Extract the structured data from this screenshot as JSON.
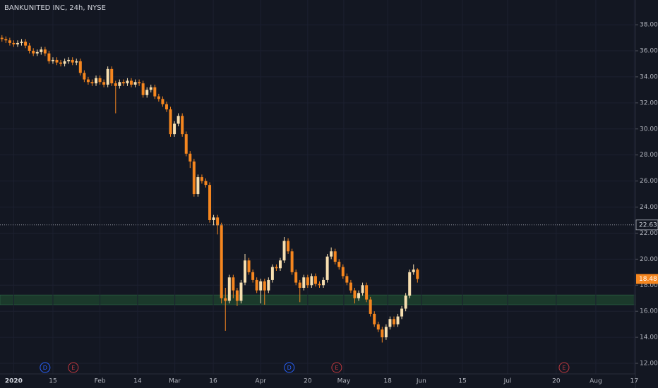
{
  "chart_data": {
    "type": "candlestick",
    "title": "BANKUNITED INC, 24h, NYSE",
    "up_color": "#f7dfb0",
    "down_color": "#f5861f",
    "grid": true,
    "xlim": [
      -0.5,
      161.6
    ],
    "ylim": [
      11.19,
      39.9
    ],
    "xticks": [
      {
        "value": 3,
        "label": "2020"
      },
      {
        "value": 13,
        "label": "15"
      },
      {
        "value": 25,
        "label": "Feb"
      },
      {
        "value": 34.6,
        "label": "14"
      },
      {
        "value": 44.1,
        "label": "Mar"
      },
      {
        "value": 53.9,
        "label": "16"
      },
      {
        "value": 66,
        "label": "Apr"
      },
      {
        "value": 78,
        "label": "20"
      },
      {
        "value": 87.2,
        "label": "May"
      },
      {
        "value": 98.4,
        "label": "18"
      },
      {
        "value": 107,
        "label": "Jun"
      },
      {
        "value": 117.5,
        "label": "15"
      },
      {
        "value": 129,
        "label": "Jul"
      },
      {
        "value": 141.4,
        "label": "20"
      },
      {
        "value": 151.5,
        "label": "Aug"
      },
      {
        "value": 161.3,
        "label": "17"
      }
    ],
    "yticks": [
      {
        "value": 12,
        "label": "12.00"
      },
      {
        "value": 14,
        "label": "14.00"
      },
      {
        "value": 16,
        "label": "16.00"
      },
      {
        "value": 18,
        "label": "18.00"
      },
      {
        "value": 20,
        "label": "20.00"
      },
      {
        "value": 22,
        "label": "22.00"
      },
      {
        "value": 24,
        "label": "24.00"
      },
      {
        "value": 26,
        "label": "26.00"
      },
      {
        "value": 28,
        "label": "28.00"
      },
      {
        "value": 30,
        "label": "30.00"
      },
      {
        "value": 32,
        "label": "32.00"
      },
      {
        "value": 34,
        "label": "34.00"
      },
      {
        "value": 36,
        "label": "36.00"
      },
      {
        "value": 38,
        "label": "38.00"
      }
    ],
    "open": [
      37.0,
      36.9,
      36.8,
      36.6,
      36.5,
      36.6,
      36.7,
      36.4,
      36.0,
      35.8,
      35.9,
      36.1,
      35.8,
      35.2,
      35.3,
      35.1,
      35.0,
      35.2,
      35.3,
      35.1,
      35.2,
      34.3,
      33.8,
      33.6,
      33.5,
      33.9,
      33.6,
      33.4,
      34.6,
      33.5,
      33.3,
      33.6,
      33.5,
      33.7,
      33.4,
      33.6,
      33.5,
      32.6,
      33.0,
      33.2,
      32.5,
      32.3,
      31.9,
      31.5,
      29.6,
      30.4,
      31.0,
      29.6,
      28.1,
      27.5,
      25.0,
      26.3,
      26.0,
      25.7,
      23.0,
      23.2,
      22.6,
      17.0,
      16.8,
      18.6,
      17.6,
      16.8,
      18.2,
      19.9,
      19.0,
      18.4,
      17.6,
      18.3,
      17.6,
      18.4,
      19.4,
      19.3,
      19.9,
      21.4,
      20.6,
      19.0,
      18.2,
      17.8,
      18.6,
      18.0,
      18.7,
      18.1,
      18.0,
      18.4,
      20.2,
      20.6,
      19.8,
      19.4,
      18.7,
      18.2,
      17.6,
      17.0,
      17.4,
      18.0,
      16.9,
      15.8,
      15.0,
      14.6,
      14.0,
      14.8,
      15.4,
      15.0,
      15.6,
      16.2,
      17.2,
      19.0,
      19.2
    ],
    "high": [
      37.2,
      37.1,
      37.0,
      36.8,
      36.8,
      36.9,
      36.9,
      36.6,
      36.2,
      36.1,
      36.3,
      36.3,
      36.0,
      35.5,
      35.5,
      35.3,
      35.4,
      35.5,
      35.5,
      35.4,
      35.4,
      34.5,
      34.0,
      33.8,
      34.1,
      34.1,
      33.8,
      34.8,
      34.8,
      33.7,
      33.8,
      33.8,
      33.9,
      33.9,
      33.8,
      33.8,
      33.7,
      33.2,
      33.4,
      33.4,
      32.7,
      32.5,
      32.1,
      31.7,
      30.6,
      31.2,
      31.2,
      29.8,
      28.3,
      27.7,
      26.5,
      26.5,
      26.2,
      25.9,
      23.4,
      23.4,
      22.8,
      17.8,
      18.8,
      18.8,
      17.8,
      18.4,
      20.4,
      20.1,
      19.2,
      18.6,
      18.5,
      18.5,
      18.6,
      19.6,
      19.6,
      20.1,
      21.7,
      21.6,
      20.8,
      19.2,
      18.4,
      18.8,
      18.8,
      18.9,
      18.9,
      18.3,
      18.6,
      20.4,
      20.9,
      20.8,
      20.0,
      19.6,
      18.9,
      18.4,
      17.8,
      17.6,
      18.2,
      18.2,
      17.1,
      16.0,
      15.2,
      14.8,
      15.0,
      15.6,
      15.6,
      15.8,
      16.4,
      17.4,
      19.2,
      19.6,
      19.3
    ],
    "low": [
      36.7,
      36.6,
      36.4,
      36.3,
      36.3,
      36.4,
      36.2,
      35.8,
      35.6,
      35.6,
      35.7,
      35.6,
      35.0,
      35.0,
      34.9,
      34.8,
      34.8,
      35.0,
      34.9,
      34.9,
      34.1,
      33.6,
      33.4,
      33.3,
      33.3,
      33.4,
      33.2,
      33.2,
      33.3,
      31.2,
      33.1,
      33.3,
      33.3,
      33.2,
      33.2,
      33.3,
      32.4,
      32.4,
      32.8,
      32.3,
      32.1,
      31.7,
      31.3,
      29.4,
      29.4,
      30.2,
      29.4,
      27.9,
      27.0,
      24.8,
      24.8,
      25.8,
      25.5,
      22.8,
      22.6,
      21.9,
      16.6,
      14.5,
      16.6,
      17.0,
      16.4,
      16.6,
      18.0,
      18.8,
      18.2,
      17.4,
      16.6,
      16.5,
      17.4,
      18.2,
      19.1,
      19.1,
      19.7,
      20.4,
      18.8,
      18.0,
      16.7,
      17.6,
      17.8,
      17.8,
      17.9,
      17.8,
      17.8,
      18.2,
      20.0,
      19.6,
      19.2,
      18.5,
      18.0,
      17.4,
      16.6,
      16.8,
      17.2,
      16.7,
      15.6,
      14.8,
      14.4,
      13.6,
      13.8,
      14.6,
      14.8,
      14.8,
      15.4,
      16.0,
      17.0,
      18.8,
      18.2
    ],
    "close": [
      36.9,
      36.8,
      36.6,
      36.5,
      36.6,
      36.7,
      36.4,
      36.0,
      35.8,
      35.9,
      36.1,
      35.8,
      35.2,
      35.3,
      35.1,
      35.0,
      35.2,
      35.3,
      35.1,
      35.2,
      34.3,
      33.8,
      33.6,
      33.5,
      33.9,
      33.6,
      33.4,
      34.6,
      33.5,
      33.3,
      33.6,
      33.5,
      33.7,
      33.4,
      33.6,
      33.5,
      32.6,
      33.0,
      33.2,
      32.5,
      32.3,
      31.9,
      31.5,
      29.6,
      30.4,
      31.0,
      29.6,
      28.1,
      27.5,
      25.0,
      26.3,
      26.0,
      25.7,
      23.0,
      23.2,
      22.6,
      17.0,
      16.8,
      18.6,
      17.6,
      16.8,
      18.2,
      19.9,
      19.0,
      18.4,
      17.6,
      18.3,
      17.6,
      18.4,
      19.4,
      19.3,
      19.9,
      21.4,
      20.6,
      19.0,
      18.2,
      17.8,
      18.6,
      18.0,
      18.7,
      18.1,
      18.0,
      18.4,
      20.2,
      20.6,
      19.8,
      19.4,
      18.7,
      18.2,
      17.6,
      17.0,
      17.4,
      18.0,
      16.9,
      15.8,
      15.0,
      14.6,
      14.0,
      14.8,
      15.4,
      15.0,
      15.6,
      16.2,
      17.2,
      19.0,
      19.2,
      18.48
    ],
    "crosshair": {
      "value": 22.63
    },
    "zone": {
      "color": "#1b3a2b",
      "range": [
        16.5,
        17.25
      ]
    },
    "events": [
      {
        "label": "D",
        "x": 11,
        "color": "#2962ff"
      },
      {
        "label": "E",
        "x": 18.2,
        "color": "#c2393f"
      },
      {
        "label": "D",
        "x": 73.3,
        "color": "#2962ff"
      },
      {
        "label": "E",
        "x": 85.4,
        "color": "#c2393f"
      },
      {
        "label": "E",
        "x": 143.4,
        "color": "#c2393f"
      }
    ]
  }
}
